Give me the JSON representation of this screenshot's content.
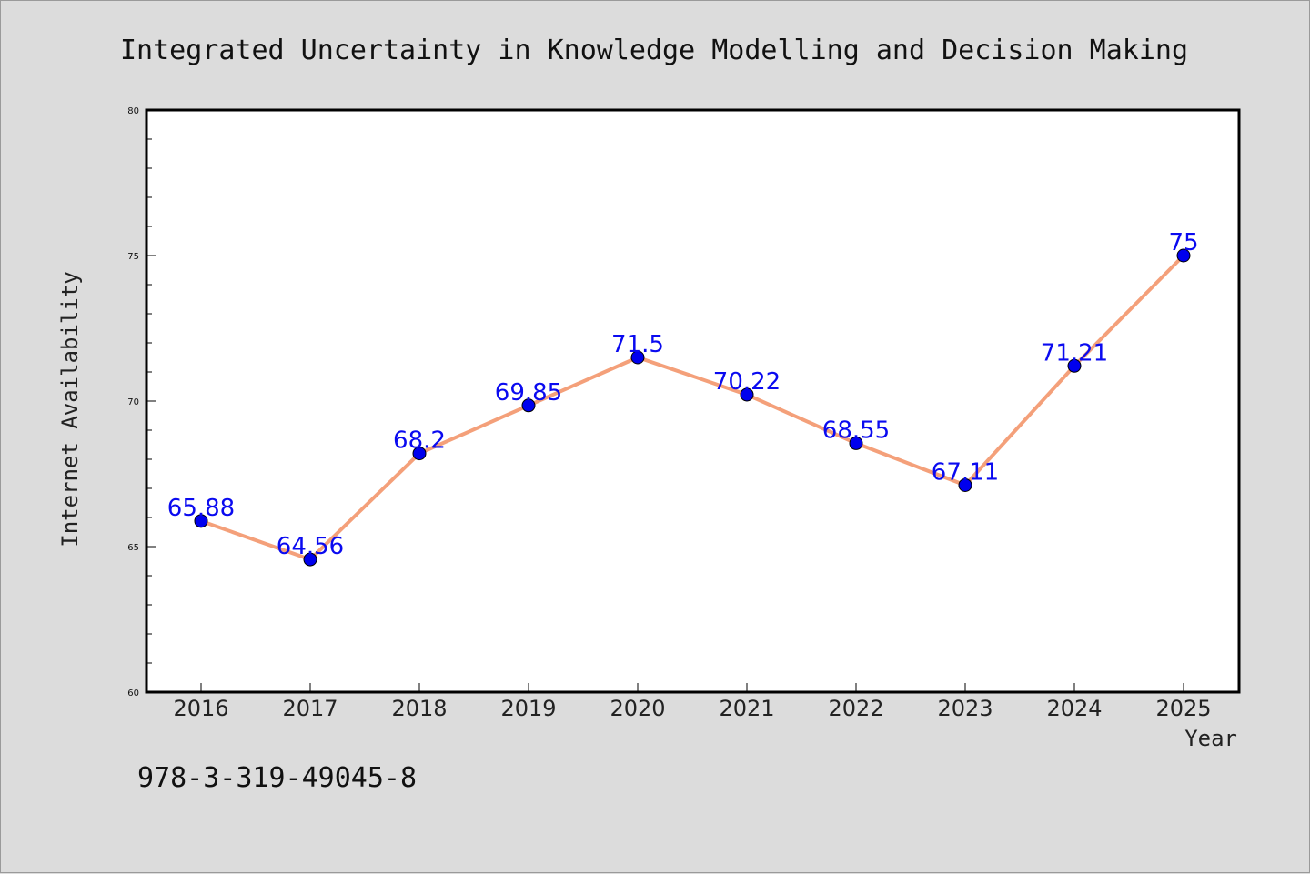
{
  "chart_data": {
    "type": "line",
    "title": "Integrated Uncertainty in Knowledge Modelling and Decision Making",
    "xlabel": "Year",
    "ylabel": "Internet Availability",
    "categories": [
      "2016",
      "2017",
      "2018",
      "2019",
      "2020",
      "2021",
      "2022",
      "2023",
      "2024",
      "2025"
    ],
    "series": [
      {
        "values": [
          65.88,
          64.56,
          68.2,
          69.85,
          71.5,
          70.22,
          68.55,
          67.11,
          71.21,
          75
        ],
        "data_labels": [
          "65.88",
          "64.56",
          "68.2",
          "69.85",
          "71.5",
          "70.22",
          "68.55",
          "67.11",
          "71.21",
          "75"
        ],
        "line_color": "#f4a07a",
        "marker_color": "#0000ee"
      }
    ],
    "ylim": [
      60,
      80
    ],
    "yticks": [
      "60",
      "65",
      "70",
      "75",
      "80"
    ],
    "grid": false,
    "legend": "none"
  },
  "footnote": "978-3-319-49045-8",
  "colors": {
    "background": "#dcdcdc",
    "plot_area": "#ffffff",
    "data_label": "#0a0af0"
  }
}
